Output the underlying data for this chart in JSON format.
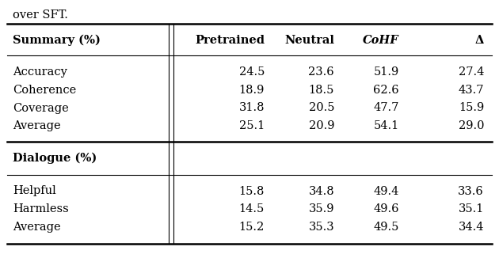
{
  "top_text": "over SFT.",
  "header": [
    "Summary (%)",
    "Pretrained",
    "Neutral",
    "CoHF",
    "Δ"
  ],
  "summary_rows": [
    [
      "Accuracy",
      "24.5",
      "23.6",
      "51.9",
      "27.4"
    ],
    [
      "Coherence",
      "18.9",
      "18.5",
      "62.6",
      "43.7"
    ],
    [
      "Coverage",
      "31.8",
      "20.5",
      "47.7",
      "15.9"
    ],
    [
      "Average",
      "25.1",
      "20.9",
      "54.1",
      "29.0"
    ]
  ],
  "dialogue_header": "Dialogue (%)",
  "dialogue_rows": [
    [
      "Helpful",
      "15.8",
      "34.8",
      "49.4",
      "33.6"
    ],
    [
      "Harmless",
      "14.5",
      "35.9",
      "49.6",
      "35.1"
    ],
    [
      "Average",
      "15.2",
      "35.3",
      "49.5",
      "34.4"
    ]
  ],
  "fig_width": 6.3,
  "fig_height": 3.5,
  "fontsize": 10.5,
  "header_fontsize": 10.5
}
